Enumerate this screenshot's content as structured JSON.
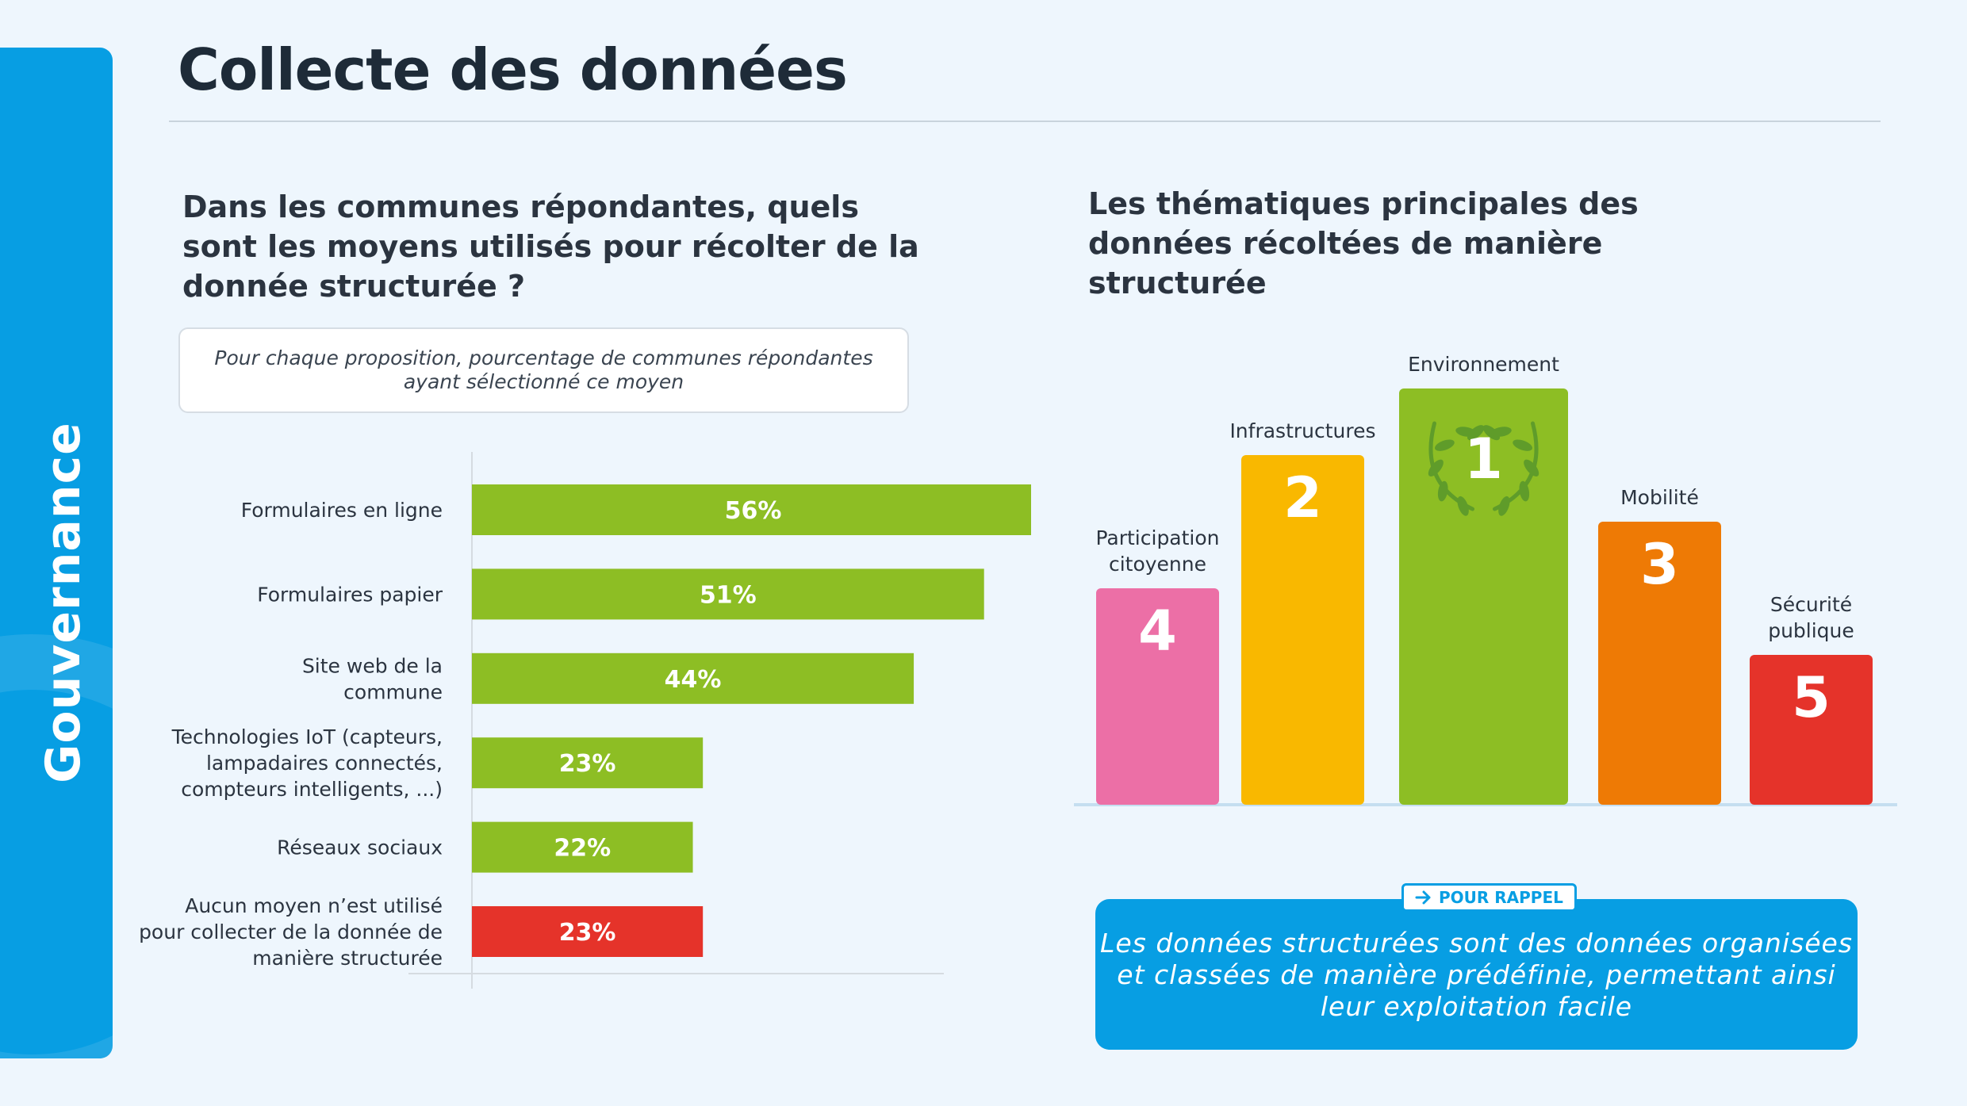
{
  "side_label": "Gouvernance",
  "page_title": "Collecte des données",
  "left": {
    "question": "Dans les communes répondantes, quels sont les moyens utilisés pour récolter de la donnée structurée ?",
    "note": "Pour chaque proposition, pourcentage de communes répondantes ayant sélectionné ce moyen"
  },
  "right": {
    "title": "Les thématiques principales des données récoltées de manière structurée"
  },
  "rappel": {
    "tag": "POUR RAPPEL",
    "text": "Les données structurées sont des données organisées et classées de manière prédéfinie, permettant ainsi leur exploitation facile"
  },
  "chart_data": [
    {
      "type": "bar",
      "orientation": "horizontal",
      "title": "Dans les communes répondantes, quels sont les moyens utilisés pour récolter de la donnée structurée ?",
      "categories": [
        [
          "Formulaires en ligne"
        ],
        [
          "Formulaires papier"
        ],
        [
          "Site web de la",
          "commune"
        ],
        [
          "Technologies IoT (capteurs,",
          "lampadaires connectés,",
          "compteurs intelligents, ...)"
        ],
        [
          "Réseaux sociaux"
        ],
        [
          "Aucun moyen n’est utilisé",
          "pour collecter de la donnée de",
          "manière structurée"
        ]
      ],
      "values": [
        56,
        51,
        44,
        23,
        22,
        23
      ],
      "data_labels": [
        "56%",
        "51%",
        "44%",
        "23%",
        "22%",
        "23%"
      ],
      "colors": [
        "#8dbe24",
        "#8dbe24",
        "#8dbe24",
        "#8dbe24",
        "#8dbe24",
        "#e5332a"
      ],
      "unit": "%",
      "xlim": [
        0,
        56
      ]
    },
    {
      "type": "bar",
      "orientation": "vertical",
      "title": "Les thématiques principales des données récoltées de manière structurée",
      "categories": [
        [
          "Participation",
          "citoyenne"
        ],
        [
          "Infrastructures"
        ],
        [
          "Environnement"
        ],
        [
          "Mobilité"
        ],
        [
          "Sécurité",
          "publique"
        ]
      ],
      "ranks": [
        4,
        2,
        1,
        3,
        5
      ],
      "rank_labels": [
        "4",
        "2",
        "1",
        "3",
        "5"
      ],
      "colors": [
        "#ec6fa6",
        "#f9b800",
        "#8dbe24",
        "#ee7a05",
        "#e5332a"
      ],
      "winner_icon": "laurel-wreath-icon"
    }
  ]
}
